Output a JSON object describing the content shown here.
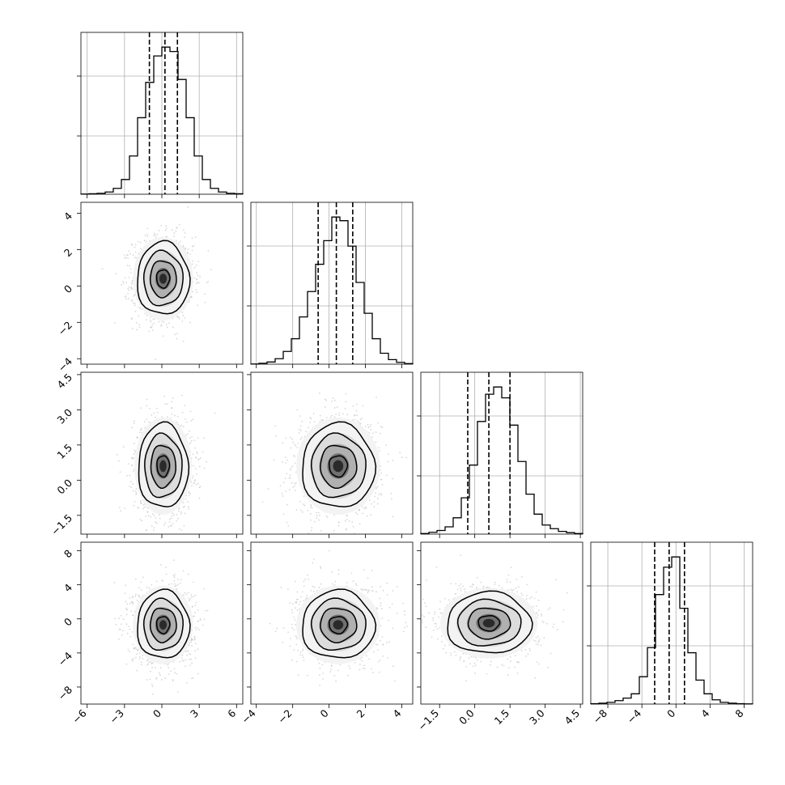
{
  "chart_data": {
    "type": "corner",
    "grid": true,
    "parameters": [
      {
        "axis_range": [
          -6.5,
          6.5
        ],
        "ticks": [
          -6,
          -3,
          0,
          3,
          6
        ],
        "tick_labels": [
          "−6",
          "−3",
          "0",
          "3",
          "6"
        ],
        "quantile_lines": [
          -1.0,
          0.25,
          1.25
        ],
        "hist": {
          "edges": [
            -6.5,
            -5.85,
            -5.2,
            -4.55,
            -3.9,
            -3.25,
            -2.6,
            -1.95,
            -1.3,
            -0.65,
            0.0,
            0.65,
            1.3,
            1.95,
            2.6,
            3.25,
            3.9,
            4.55,
            5.2,
            5.85,
            6.5
          ],
          "counts": [
            0.1,
            0.3,
            0.6,
            1.5,
            4,
            10,
            26,
            52,
            76,
            94,
            100,
            97,
            78,
            52,
            26,
            10,
            4,
            1.5,
            0.6,
            0.3
          ]
        }
      },
      {
        "axis_range": [
          -4.3,
          4.6
        ],
        "ticks": [
          -4,
          -2,
          0,
          2,
          4
        ],
        "tick_labels": [
          "−4",
          "−2",
          "0",
          "2",
          "4"
        ],
        "quantile_lines": [
          -0.6,
          0.4,
          1.3
        ],
        "hist": {
          "edges": [
            -4.3,
            -3.855,
            -3.41,
            -2.965,
            -2.52,
            -2.075,
            -1.63,
            -1.185,
            -0.74,
            -0.295,
            0.15,
            0.595,
            1.04,
            1.485,
            1.93,
            2.375,
            2.82,
            3.265,
            3.71,
            4.155,
            4.6
          ],
          "counts": [
            0.1,
            0.5,
            1.2,
            3,
            7,
            14,
            26,
            40,
            55,
            68,
            81,
            79,
            65,
            45,
            28,
            14,
            6,
            2.5,
            1,
            0.3
          ]
        }
      },
      {
        "axis_range": [
          -2.3,
          4.6
        ],
        "ticks": [
          -1.5,
          0.0,
          1.5,
          3.0,
          4.5
        ],
        "tick_labels": [
          "−1.5",
          "0.0",
          "1.5",
          "3.0",
          "4.5"
        ],
        "quantile_lines": [
          -0.3,
          0.6,
          1.5
        ],
        "hist": {
          "edges": [
            -2.3,
            -1.955,
            -1.61,
            -1.265,
            -0.92,
            -0.575,
            -0.23,
            0.115,
            0.46,
            0.805,
            1.15,
            1.495,
            1.84,
            2.185,
            2.53,
            2.875,
            3.22,
            3.565,
            3.91,
            4.255,
            4.6
          ],
          "counts": [
            0.3,
            1,
            2,
            4,
            9,
            20,
            38,
            62,
            77,
            81,
            75,
            60,
            40,
            22,
            11,
            5,
            3,
            1.5,
            0.8,
            0.3
          ]
        }
      },
      {
        "axis_range": [
          -10,
          9
        ],
        "ticks": [
          -8,
          -4,
          0,
          4,
          8
        ],
        "tick_labels": [
          "−8",
          "−4",
          "0",
          "4",
          "8"
        ],
        "quantile_lines": [
          -2.5,
          -0.8,
          1.0
        ],
        "hist": {
          "edges": [
            -10,
            -9.05,
            -8.1,
            -7.15,
            -6.2,
            -5.25,
            -4.3,
            -3.35,
            -2.4,
            -1.45,
            -0.5,
            0.45,
            1.4,
            2.35,
            3.3,
            4.25,
            5.2,
            6.15,
            7.1,
            8.05,
            9
          ],
          "counts": [
            0.2,
            0.5,
            1,
            2,
            3.5,
            6,
            16,
            33,
            64,
            80,
            86,
            56,
            30,
            14,
            6,
            2.5,
            1,
            0.5,
            0.2,
            0.1
          ]
        }
      }
    ],
    "pairs": [
      {
        "row": 1,
        "col": 0,
        "center": [
          0.1,
          0.4
        ],
        "spread": [
          1.05,
          1.0
        ],
        "contour_radii": [
          0.5,
          1.0,
          1.5,
          2.0
        ]
      },
      {
        "row": 2,
        "col": 0,
        "center": [
          0.1,
          0.6
        ],
        "spread": [
          1.0,
          0.9
        ],
        "contour_radii": [
          0.5,
          1.0,
          1.5,
          2.0
        ]
      },
      {
        "row": 2,
        "col": 1,
        "center": [
          0.5,
          0.6
        ],
        "spread": [
          1.0,
          0.9
        ],
        "contour_radii": [
          0.5,
          1.0,
          1.5,
          2.0
        ]
      },
      {
        "row": 3,
        "col": 0,
        "center": [
          0.1,
          -0.7
        ],
        "spread": [
          1.05,
          2.0
        ],
        "contour_radii": [
          0.5,
          1.0,
          1.5,
          2.0
        ]
      },
      {
        "row": 3,
        "col": 1,
        "center": [
          0.5,
          -0.7
        ],
        "spread": [
          1.0,
          2.0
        ],
        "contour_radii": [
          0.5,
          1.0,
          1.5,
          2.0
        ]
      },
      {
        "row": 3,
        "col": 2,
        "center": [
          0.6,
          -0.5
        ],
        "spread": [
          0.9,
          1.8
        ],
        "contour_radii": [
          0.5,
          1.0,
          1.5,
          2.0
        ]
      }
    ],
    "axis_labels": [],
    "title": ""
  }
}
